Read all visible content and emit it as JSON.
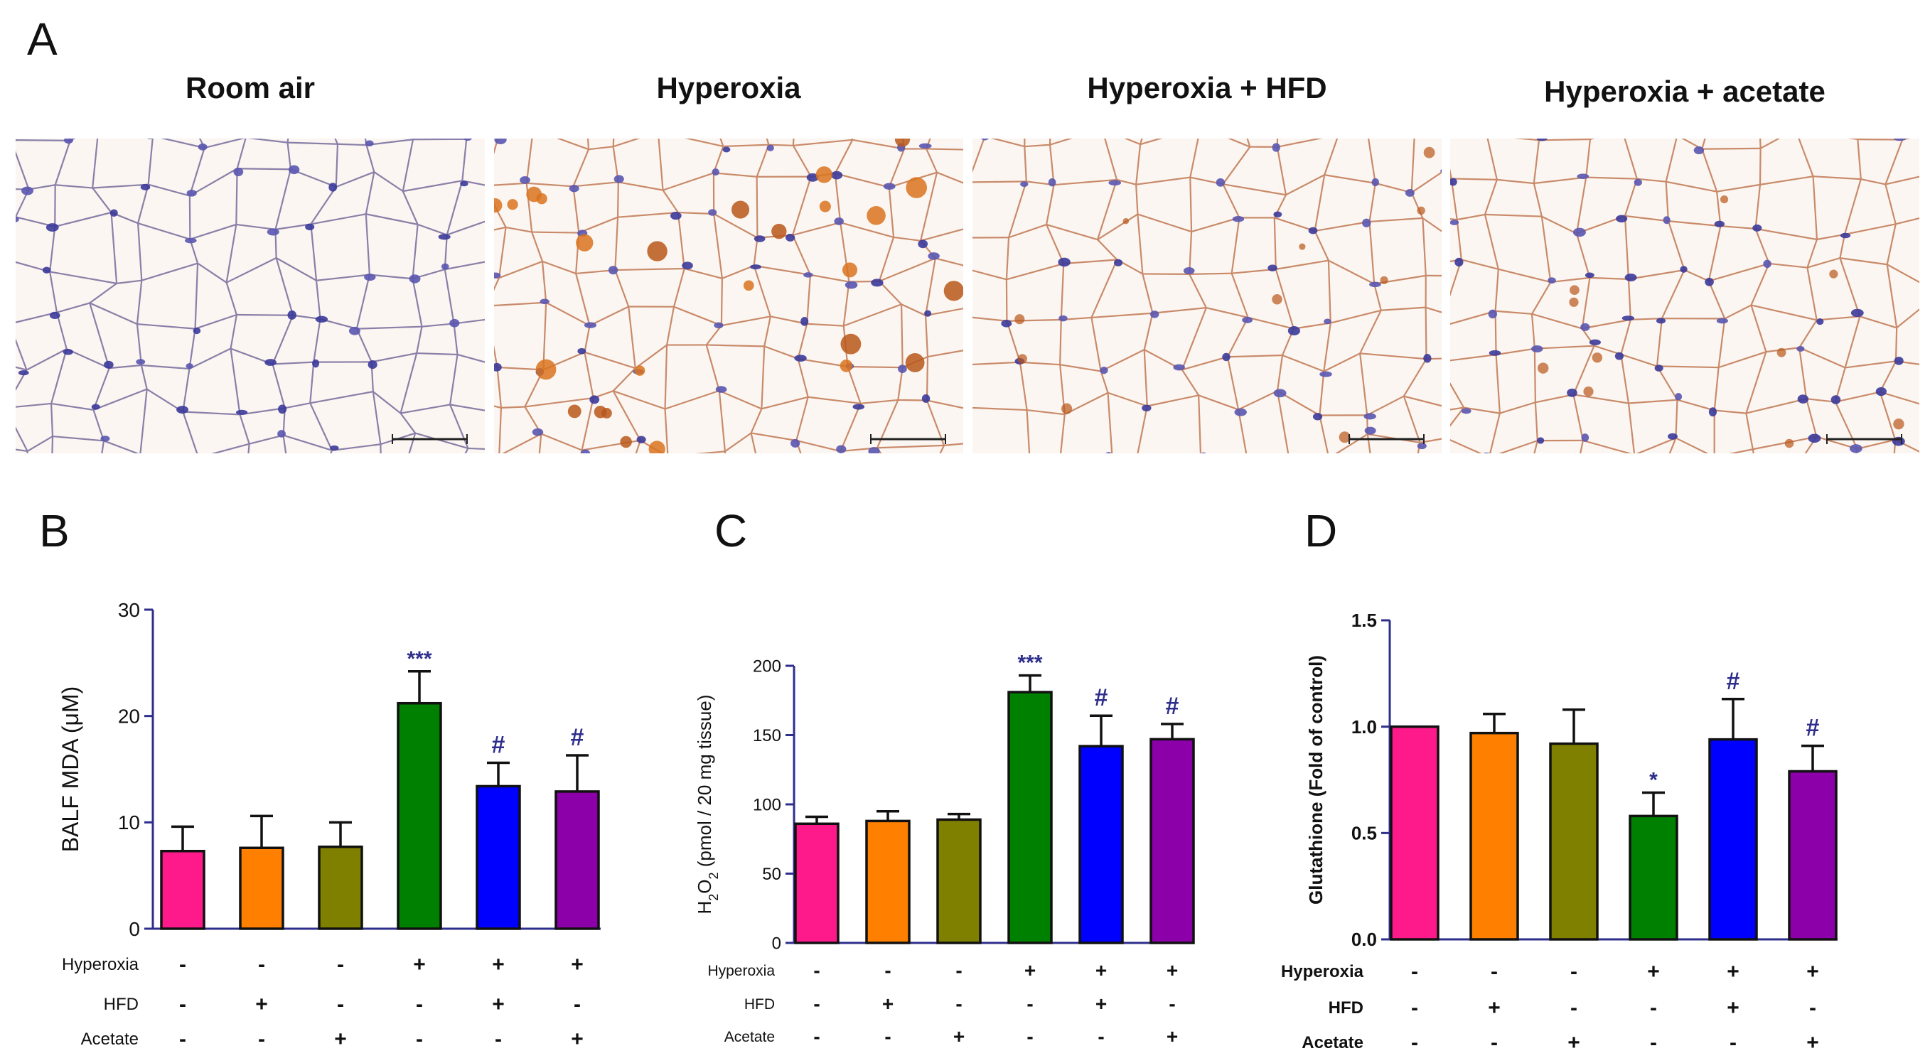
{
  "panels": {
    "A": "A",
    "B": "B",
    "C": "C",
    "D": "D"
  },
  "micrographs": [
    {
      "title": "Room air",
      "stain": "blue"
    },
    {
      "title": "Hyperoxia",
      "stain": "orange-heavy"
    },
    {
      "title": "Hyperoxia + HFD",
      "stain": "orange-light"
    },
    {
      "title": "Hyperoxia + acetate",
      "stain": "orange-light"
    }
  ],
  "colors": {
    "bars": [
      "#ff1a8c",
      "#ff8000",
      "#808000",
      "#008000",
      "#0000ff",
      "#8b00a8"
    ],
    "axis": "#2e2e8c",
    "annotation": "#2e2e8c"
  },
  "condition_rows": [
    {
      "label": "Hyperoxia",
      "signs": [
        "-",
        "-",
        "-",
        "+",
        "+",
        "+"
      ]
    },
    {
      "label": "HFD",
      "signs": [
        "-",
        "+",
        "-",
        "-",
        "+",
        "-"
      ]
    },
    {
      "label": "Acetate",
      "signs": [
        "-",
        "-",
        "+",
        "-",
        "-",
        "+"
      ]
    }
  ],
  "chart_data": [
    {
      "panel": "B",
      "type": "bar",
      "ylabel": "BALF MDA (μM)",
      "ylim": [
        0,
        30
      ],
      "yticks": [
        "0",
        "10",
        "20",
        "30"
      ],
      "values": [
        7.3,
        7.6,
        7.7,
        21.2,
        13.4,
        12.9
      ],
      "errors": [
        2.3,
        3.0,
        2.3,
        3.0,
        2.2,
        3.4
      ],
      "annotations": [
        "",
        "",
        "",
        "***",
        "#",
        "#"
      ]
    },
    {
      "panel": "C",
      "type": "bar",
      "ylabel": "H2O2 (pmol / 20 mg tissue)",
      "ylim": [
        0,
        200
      ],
      "yticks": [
        "0",
        "50",
        "100",
        "150",
        "200"
      ],
      "values": [
        86,
        88,
        89,
        181,
        142,
        147
      ],
      "errors": [
        5,
        7,
        4,
        12,
        22,
        11
      ],
      "annotations": [
        "",
        "",
        "",
        "***",
        "#",
        "#"
      ]
    },
    {
      "panel": "D",
      "type": "bar",
      "ylabel": "Glutathione (Fold of control)",
      "ylim": [
        0,
        1.5
      ],
      "yticks": [
        "0.0",
        "0.5",
        "1.0",
        "1.5"
      ],
      "values": [
        1.0,
        0.97,
        0.92,
        0.58,
        0.94,
        0.79
      ],
      "errors": [
        0.0,
        0.09,
        0.16,
        0.11,
        0.19,
        0.12
      ],
      "annotations": [
        "",
        "",
        "",
        "*",
        "#",
        "#"
      ]
    }
  ]
}
